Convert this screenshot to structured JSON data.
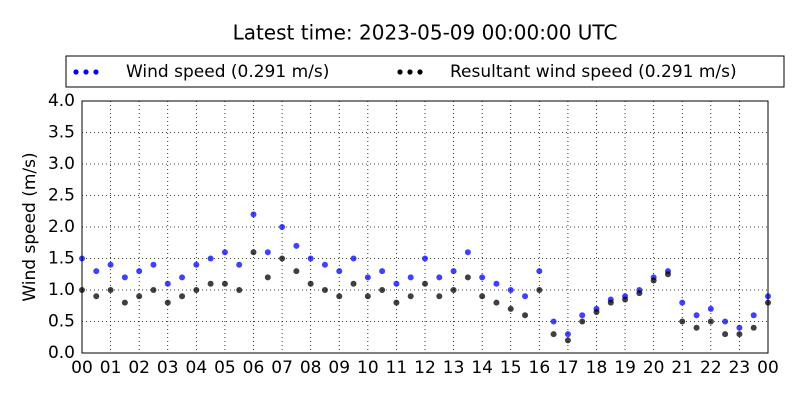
{
  "chart_data": {
    "type": "scatter",
    "title": "Latest time: 2023-05-09 00:00:00 UTC",
    "y_label": "Wind speed (m/s)",
    "x": [
      0,
      0.5,
      1,
      1.5,
      2,
      2.5,
      3,
      3.5,
      4,
      4.5,
      5,
      5.5,
      6,
      6.5,
      7,
      7.5,
      8,
      8.5,
      9,
      9.5,
      10,
      10.5,
      11,
      11.5,
      12,
      12.5,
      13,
      13.5,
      14,
      14.5,
      15,
      15.5,
      16,
      16.5,
      17,
      17.5,
      18,
      18.5,
      19,
      19.5,
      20,
      20.5,
      21,
      21.5,
      22,
      22.5,
      23,
      23.5,
      24
    ],
    "series": [
      {
        "name": "Wind speed (0.291 m/s)",
        "color": "#0000ff",
        "values": [
          1.5,
          1.3,
          1.4,
          1.2,
          1.3,
          1.4,
          1.1,
          1.2,
          1.4,
          1.5,
          1.6,
          1.4,
          2.2,
          1.6,
          2.0,
          1.7,
          1.5,
          1.4,
          1.3,
          1.5,
          1.2,
          1.3,
          1.1,
          1.2,
          1.5,
          1.2,
          1.3,
          1.6,
          1.2,
          1.1,
          1.0,
          0.9,
          1.3,
          0.5,
          0.3,
          0.6,
          0.7,
          0.85,
          0.9,
          1.0,
          1.2,
          1.3,
          0.8,
          0.6,
          0.7,
          0.5,
          0.4,
          0.6,
          0.9
        ]
      },
      {
        "name": "Resultant wind speed (0.291 m/s)",
        "color": "#000000",
        "values": [
          1.0,
          0.9,
          1.0,
          0.8,
          0.9,
          1.0,
          0.8,
          0.9,
          1.0,
          1.1,
          1.1,
          1.0,
          1.6,
          1.2,
          1.5,
          1.3,
          1.1,
          1.0,
          0.9,
          1.1,
          0.9,
          1.0,
          0.8,
          0.9,
          1.1,
          0.9,
          1.0,
          1.2,
          0.9,
          0.8,
          0.7,
          0.6,
          1.0,
          0.3,
          0.2,
          0.5,
          0.65,
          0.8,
          0.85,
          0.95,
          1.15,
          1.25,
          0.5,
          0.4,
          0.5,
          0.3,
          0.3,
          0.4,
          0.8
        ]
      }
    ],
    "xlim": [
      0,
      24
    ],
    "xticks": [
      {
        "value": 0,
        "label": "00"
      },
      {
        "value": 1,
        "label": "01"
      },
      {
        "value": 2,
        "label": "02"
      },
      {
        "value": 3,
        "label": "03"
      },
      {
        "value": 4,
        "label": "04"
      },
      {
        "value": 5,
        "label": "05"
      },
      {
        "value": 6,
        "label": "06"
      },
      {
        "value": 7,
        "label": "07"
      },
      {
        "value": 8,
        "label": "08"
      },
      {
        "value": 9,
        "label": "09"
      },
      {
        "value": 10,
        "label": "10"
      },
      {
        "value": 11,
        "label": "11"
      },
      {
        "value": 12,
        "label": "12"
      },
      {
        "value": 13,
        "label": "13"
      },
      {
        "value": 14,
        "label": "14"
      },
      {
        "value": 15,
        "label": "15"
      },
      {
        "value": 16,
        "label": "16"
      },
      {
        "value": 17,
        "label": "17"
      },
      {
        "value": 18,
        "label": "18"
      },
      {
        "value": 19,
        "label": "19"
      },
      {
        "value": 20,
        "label": "20"
      },
      {
        "value": 21,
        "label": "21"
      },
      {
        "value": 22,
        "label": "22"
      },
      {
        "value": 23,
        "label": "23"
      },
      {
        "value": 24,
        "label": "00"
      }
    ],
    "ylim": [
      0,
      4
    ],
    "yticks": [
      {
        "value": 0,
        "label": "0.0"
      },
      {
        "value": 0.5,
        "label": "0.5"
      },
      {
        "value": 1,
        "label": "1.0"
      },
      {
        "value": 1.5,
        "label": "1.5"
      },
      {
        "value": 2,
        "label": "2.0"
      },
      {
        "value": 2.5,
        "label": "2.5"
      },
      {
        "value": 3,
        "label": "3.0"
      },
      {
        "value": 3.5,
        "label": "3.5"
      },
      {
        "value": 4,
        "label": "4.0"
      }
    ],
    "grid": true
  }
}
